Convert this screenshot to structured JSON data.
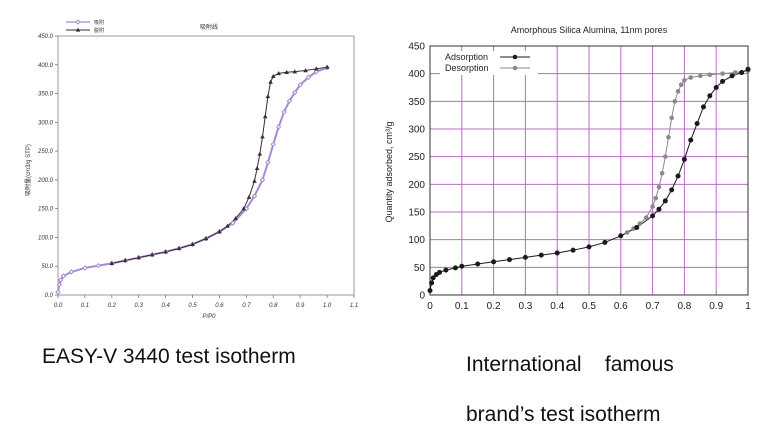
{
  "chart_data": [
    {
      "type": "line",
      "title": "吸附线",
      "xlabel": "P/P0",
      "ylabel": "吸附量(cm3/g STP)",
      "xlim": [
        0.0,
        1.1
      ],
      "ylim": [
        0,
        450
      ],
      "x_ticks": [
        "0.0",
        "0.1",
        "0.2",
        "0.3",
        "0.4",
        "0.5",
        "0.6",
        "0.7",
        "0.8",
        "0.9",
        "1.0",
        "1.1"
      ],
      "y_ticks": [
        "0.0",
        "50.0",
        "100.0",
        "150.0",
        "200.0",
        "250.0",
        "300.0",
        "350.0",
        "400.0",
        "450.0"
      ],
      "grid": false,
      "legend": "top-left",
      "colors": {
        "adsorption": "#a78ad0",
        "desorption": "#3a2a3a"
      },
      "series": [
        {
          "name": "吸附",
          "x": [
            0.0,
            0.005,
            0.01,
            0.02,
            0.05,
            0.1,
            0.15,
            0.2,
            0.25,
            0.3,
            0.35,
            0.4,
            0.45,
            0.5,
            0.55,
            0.6,
            0.65,
            0.7,
            0.73,
            0.76,
            0.78,
            0.8,
            0.82,
            0.84,
            0.86,
            0.88,
            0.9,
            0.93,
            0.96,
            1.0
          ],
          "y": [
            5,
            18,
            26,
            33,
            40,
            47,
            51,
            55,
            60,
            65,
            70,
            75,
            81,
            88,
            98,
            110,
            125,
            150,
            172,
            200,
            230,
            262,
            292,
            318,
            337,
            352,
            365,
            378,
            388,
            395
          ]
        },
        {
          "name": "脱附",
          "x": [
            0.2,
            0.25,
            0.3,
            0.35,
            0.4,
            0.45,
            0.5,
            0.55,
            0.6,
            0.63,
            0.66,
            0.69,
            0.71,
            0.73,
            0.74,
            0.75,
            0.76,
            0.77,
            0.78,
            0.79,
            0.8,
            0.82,
            0.85,
            0.88,
            0.92,
            0.96,
            1.0
          ],
          "y": [
            55,
            60,
            65,
            70,
            75,
            81,
            88,
            98,
            110,
            120,
            133,
            150,
            170,
            198,
            220,
            245,
            275,
            310,
            345,
            370,
            380,
            385,
            387,
            388,
            390,
            393,
            396
          ]
        }
      ]
    },
    {
      "type": "line",
      "title": "Amorphous Silica Alumina, 11nm pores",
      "xlabel": "",
      "ylabel": "Quantity adsorbed, cm³/g",
      "xlim": [
        0,
        1
      ],
      "ylim": [
        0,
        450
      ],
      "x_ticks": [
        "0",
        "0.1",
        "0.2",
        "0.3",
        "0.4",
        "0.5",
        "0.6",
        "0.7",
        "0.8",
        "0.9",
        "1"
      ],
      "y_ticks": [
        "0",
        "50",
        "100",
        "150",
        "200",
        "250",
        "300",
        "350",
        "400",
        "450"
      ],
      "grid": true,
      "legend": "top-left",
      "colors": {
        "grid": "#b86cc4",
        "adsorption": "#1a1a1a",
        "desorption": "#8a8a8a"
      },
      "series": [
        {
          "name": "Adsorption",
          "x": [
            0.0,
            0.005,
            0.01,
            0.02,
            0.03,
            0.05,
            0.08,
            0.1,
            0.15,
            0.2,
            0.25,
            0.3,
            0.35,
            0.4,
            0.45,
            0.5,
            0.55,
            0.6,
            0.65,
            0.7,
            0.72,
            0.74,
            0.76,
            0.78,
            0.8,
            0.82,
            0.84,
            0.86,
            0.88,
            0.9,
            0.92,
            0.95,
            0.98,
            1.0
          ],
          "y": [
            8,
            22,
            31,
            37,
            41,
            45,
            49,
            52,
            56,
            60,
            64,
            68,
            72,
            76,
            81,
            87,
            95,
            107,
            122,
            143,
            155,
            170,
            190,
            215,
            245,
            280,
            310,
            340,
            360,
            375,
            386,
            396,
            402,
            408
          ]
        },
        {
          "name": "Desorption",
          "x": [
            0.6,
            0.62,
            0.64,
            0.66,
            0.68,
            0.7,
            0.71,
            0.72,
            0.73,
            0.74,
            0.75,
            0.76,
            0.77,
            0.78,
            0.79,
            0.8,
            0.82,
            0.85,
            0.88,
            0.92,
            0.96,
            1.0
          ],
          "y": [
            107,
            113,
            120,
            129,
            140,
            160,
            175,
            195,
            220,
            250,
            285,
            320,
            350,
            368,
            380,
            388,
            393,
            396,
            398,
            400,
            402,
            405
          ]
        }
      ]
    }
  ],
  "captions": {
    "left": "EASY-V 3440 test isotherm",
    "right_line1": "International    famous",
    "right_line2": "brand’s test isotherm"
  }
}
